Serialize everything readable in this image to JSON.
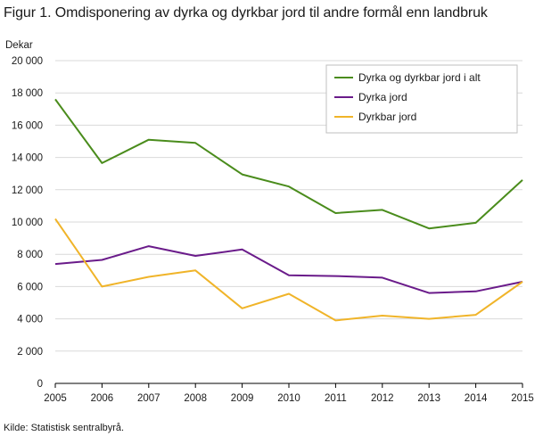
{
  "title": "Figur 1. Omdisponering av dyrka og dyrkbar jord til andre formål enn landbruk",
  "source": "Kilde: Statistisk sentralbyrå.",
  "chart_data": {
    "type": "line",
    "ylabel": "Dekar",
    "xlabel": "",
    "x": [
      "2005",
      "2006",
      "2007",
      "2008",
      "2009",
      "2010",
      "2011",
      "2012",
      "2013",
      "2014",
      "2015"
    ],
    "ylim": [
      0,
      20000
    ],
    "yticks": [
      0,
      2000,
      4000,
      6000,
      8000,
      10000,
      12000,
      14000,
      16000,
      18000,
      20000
    ],
    "ytick_labels": [
      "0",
      "2 000",
      "4 000",
      "6 000",
      "8 000",
      "10 000",
      "12 000",
      "14 000",
      "16 000",
      "18 000",
      "20 000"
    ],
    "grid": "horizontal",
    "legend_position": "top-right",
    "series": [
      {
        "name": "Dyrka og dyrkbar jord i alt",
        "color": "#4a8c1c",
        "values": [
          17600,
          13650,
          15100,
          14900,
          12950,
          12200,
          10550,
          10750,
          9600,
          9950,
          12600
        ]
      },
      {
        "name": "Dyrka jord",
        "color": "#6a1b8a",
        "values": [
          7400,
          7650,
          8500,
          7900,
          8300,
          6700,
          6650,
          6550,
          5600,
          5700,
          6300
        ]
      },
      {
        "name": "Dyrkbar jord",
        "color": "#f0b429",
        "values": [
          10200,
          6000,
          6600,
          7000,
          4650,
          5550,
          3900,
          4200,
          4000,
          4250,
          6300
        ]
      }
    ]
  }
}
